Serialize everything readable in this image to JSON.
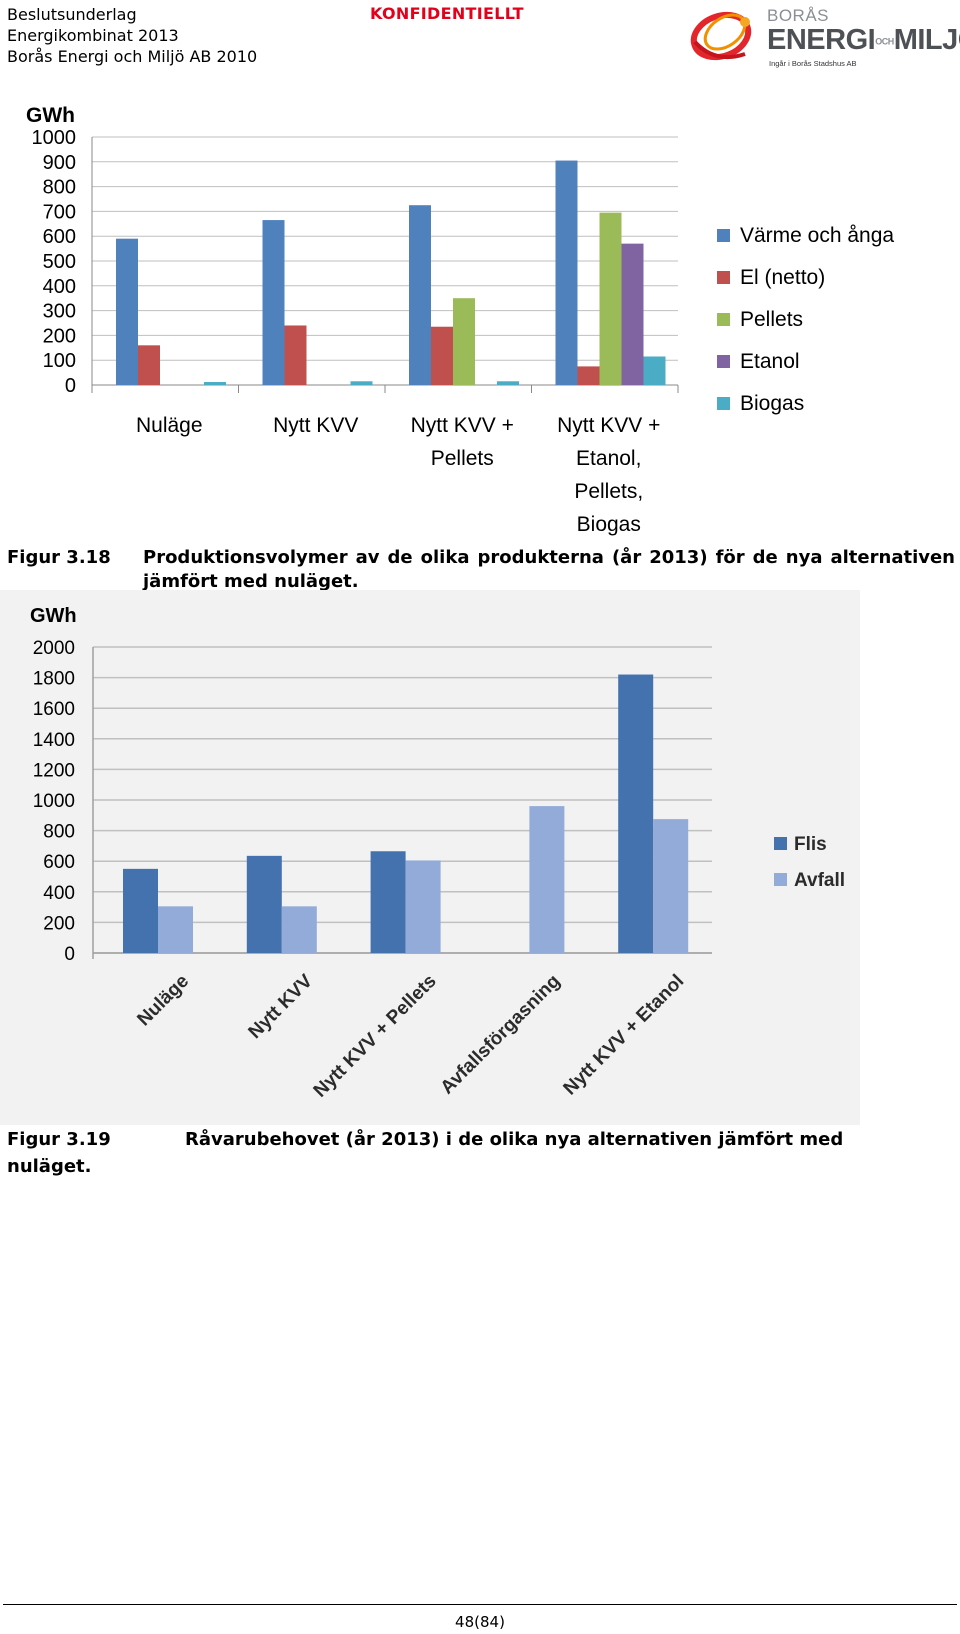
{
  "header": {
    "lines": [
      "Beslutsunderlag",
      "Energikombinat 2013",
      "Borås Energi och Miljö AB 2010"
    ],
    "confidential": "KONFIDENTIELLT",
    "logo": {
      "line1": "BORÅS",
      "line2": "ENERGI",
      "line2b": "OCH",
      "line2c": "MILJÖ",
      "line3": "Ingår i Borås Stadshus AB"
    }
  },
  "chart_data": [
    {
      "type": "bar",
      "ylabel": "GWh",
      "ylim": [
        0,
        1000
      ],
      "yticks": [
        1000,
        900,
        800,
        700,
        600,
        500,
        400,
        300,
        200,
        100,
        0
      ],
      "categories": [
        "Nuläge",
        "Nytt KVV",
        "Nytt KVV + Pellets",
        "Nytt KVV + Etanol, Pellets, Biogas"
      ],
      "category_lines": [
        [
          "Nuläge"
        ],
        [
          "Nytt KVV"
        ],
        [
          "Nytt KVV +",
          "Pellets"
        ],
        [
          "Nytt KVV +",
          "Etanol,",
          "Pellets,",
          "Biogas"
        ]
      ],
      "legend_position": "right",
      "grid": true,
      "series": [
        {
          "name": "Värme och ånga",
          "color": "#4f81bd",
          "values": [
            590,
            665,
            725,
            905
          ]
        },
        {
          "name": "El (netto)",
          "color": "#c0504d",
          "values": [
            160,
            240,
            235,
            75
          ]
        },
        {
          "name": "Pellets",
          "color": "#9bbb59",
          "values": [
            null,
            null,
            350,
            695
          ]
        },
        {
          "name": "Etanol",
          "color": "#8064a2",
          "values": [
            null,
            null,
            null,
            570
          ]
        },
        {
          "name": "Biogas",
          "color": "#4bacc6",
          "values": [
            12,
            15,
            15,
            115
          ]
        }
      ]
    },
    {
      "type": "bar",
      "ylabel": "GWh",
      "ylim": [
        0,
        2000
      ],
      "yticks": [
        2000,
        1800,
        1600,
        1400,
        1200,
        1000,
        800,
        600,
        400,
        200,
        0
      ],
      "categories": [
        "Nuläge",
        "Nytt KVV",
        "Nytt KVV + Pellets",
        "Avfallsförgasning",
        "Nytt KVV + Etanol"
      ],
      "legend_position": "right",
      "grid": true,
      "series": [
        {
          "name": "Flis",
          "color": "#4472ae",
          "values": [
            550,
            635,
            665,
            null,
            1820
          ]
        },
        {
          "name": "Avfall",
          "color": "#93abd8",
          "values": [
            305,
            305,
            605,
            960,
            875
          ]
        }
      ]
    }
  ],
  "captions": {
    "fig318_num": "Figur 3.18",
    "fig318_text": "Produktionsvolymer av de olika produkterna (år 2013) för de nya alternativen jämfört med nuläget.",
    "fig319_num": "Figur 3.19",
    "fig319_text": "Råvarubehovet (år 2013) i de olika nya alternativen jämfört med",
    "fig319_cont": "nuläget."
  },
  "footer": {
    "page": "48(84)"
  }
}
